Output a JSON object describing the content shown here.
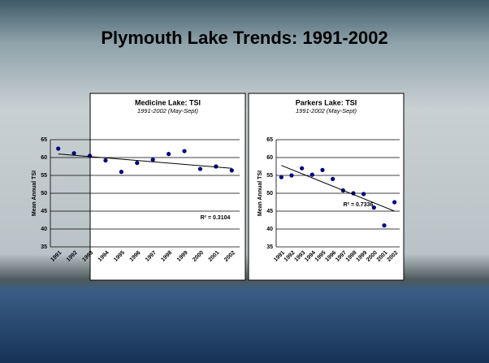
{
  "slide_title": "Plymouth Lake Trends: 1991-2002",
  "chart_data": [
    {
      "type": "scatter",
      "title": "Medicine Lake: TSI",
      "subtitle": "1991-2002 (May-Sept)",
      "y_label": "Mean Annual TSI",
      "categories": [
        "1991",
        "1992",
        "1993",
        "1994",
        "1995",
        "1996",
        "1997",
        "1998",
        "1999",
        "2000",
        "2001",
        "2002"
      ],
      "values": [
        62.5,
        61.2,
        60.5,
        59.2,
        56,
        58.5,
        59.4,
        61,
        61.8,
        56.8,
        57.5,
        56.4
      ],
      "color": "#000080",
      "trendline": [
        61,
        57
      ],
      "annotation": "R² = 0.3104",
      "ylim": [
        35,
        65
      ],
      "yticks": [
        35,
        40,
        45,
        50,
        55,
        60,
        65
      ],
      "grid": true
    },
    {
      "type": "scatter",
      "title": "Parkers Lake: TSI",
      "subtitle": "1991-2002 (May-Sept)",
      "y_label": "Mean Annual TSI",
      "categories": [
        "1991",
        "1992",
        "1993",
        "1994",
        "1995",
        "1996",
        "1997",
        "1998",
        "1999",
        "2000",
        "2001",
        "2002"
      ],
      "values": [
        54.5,
        55,
        57,
        55.2,
        56.5,
        54,
        50.8,
        50,
        49.8,
        46,
        41,
        47.5
      ],
      "color": "#000080",
      "trendline": [
        57.8,
        45
      ],
      "annotation": "R² = 0.7336",
      "ylim": [
        35,
        65
      ],
      "yticks": [
        35,
        40,
        45,
        50,
        55,
        60,
        65
      ],
      "grid": true
    }
  ]
}
